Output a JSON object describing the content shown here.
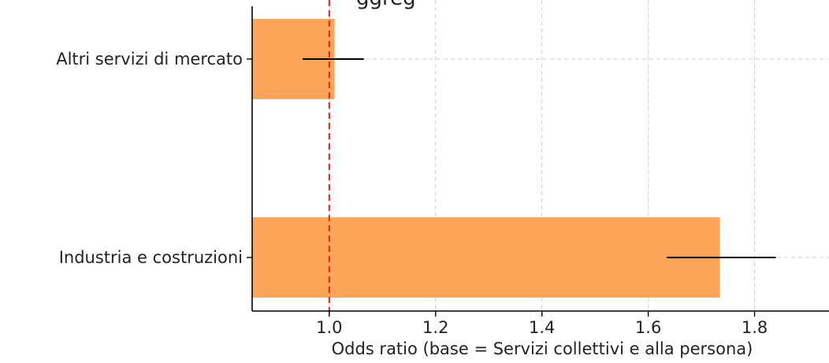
{
  "chart_data": {
    "type": "bar",
    "orientation": "horizontal",
    "title": "",
    "title_partial_visible": "ggreg",
    "xlabel": "Odds ratio (base = Servizi collettivi e alla persona)",
    "ylabel": "",
    "categories": [
      "Altri servizi di mercato",
      "Industria e costruzioni"
    ],
    "values": [
      1.01,
      1.735
    ],
    "ci_lower": [
      0.95,
      1.635
    ],
    "ci_upper": [
      1.065,
      1.84
    ],
    "xlim": [
      0.855,
      1.94
    ],
    "xticks": [
      1.0,
      1.2,
      1.4,
      1.6,
      1.8
    ],
    "xtick_labels": [
      "1.0",
      "1.2",
      "1.4",
      "1.6",
      "1.8"
    ],
    "reference_line": 1.0,
    "grid": true,
    "legend": "none",
    "colors": {
      "bar": "#FDA65A",
      "reference_line": "#E8201C",
      "error_bar": "#000000",
      "grid": "#cccccc"
    }
  }
}
